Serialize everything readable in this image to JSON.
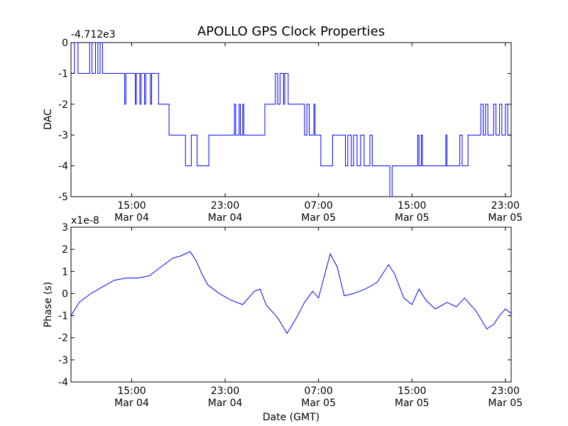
{
  "chart_data": {
    "title": "APOLLO GPS Clock Properties",
    "xlabel": "Date (GMT)",
    "x_ticks": [
      {
        "time": "15:00",
        "date": "Mar 04"
      },
      {
        "time": "23:00",
        "date": "Mar 04"
      },
      {
        "time": "07:00",
        "date": "Mar 05"
      },
      {
        "time": "15:00",
        "date": "Mar 05"
      },
      {
        "time": "23:00",
        "date": "Mar 05"
      }
    ],
    "xlim_hours": [
      -5.2,
      32.5
    ],
    "x_ticks_hours": [
      0,
      8,
      16,
      24,
      32
    ],
    "panels": [
      {
        "type": "line",
        "ylabel": "DAC",
        "offset_label": "-4.712e3",
        "ylim": [
          -5,
          0
        ],
        "yticks": [
          0,
          -1,
          -2,
          -3,
          -4,
          -5
        ],
        "ytick_labels": [
          "0",
          "-1",
          "-2",
          "-3",
          "-4",
          "-5"
        ],
        "series": [
          {
            "color": "#0000ff",
            "points": [
              [
                -5.2,
                -1
              ],
              [
                -4.9,
                0
              ],
              [
                -4.6,
                -1
              ],
              [
                -3.6,
                0
              ],
              [
                -3.4,
                -1
              ],
              [
                -3.1,
                0
              ],
              [
                -2.9,
                -1
              ],
              [
                -2.7,
                0
              ],
              [
                -2.5,
                -1
              ],
              [
                -1.8,
                -1
              ],
              [
                -0.7,
                -1
              ],
              [
                -0.6,
                -2
              ],
              [
                -0.5,
                -1
              ],
              [
                0.2,
                -1
              ],
              [
                0.3,
                -2
              ],
              [
                0.4,
                -1
              ],
              [
                0.7,
                -2
              ],
              [
                0.8,
                -1
              ],
              [
                1.0,
                -1
              ],
              [
                1.1,
                -2
              ],
              [
                1.2,
                -1
              ],
              [
                1.6,
                -2
              ],
              [
                1.7,
                -1
              ],
              [
                2.3,
                -2
              ],
              [
                3.2,
                -3
              ],
              [
                4.6,
                -4
              ],
              [
                5.1,
                -3
              ],
              [
                5.5,
                -3
              ],
              [
                5.6,
                -4
              ],
              [
                6.6,
                -3
              ],
              [
                7.2,
                -3
              ],
              [
                8.7,
                -3
              ],
              [
                8.8,
                -2
              ],
              [
                8.9,
                -3
              ],
              [
                9.2,
                -2
              ],
              [
                9.3,
                -3
              ],
              [
                9.5,
                -2
              ],
              [
                9.6,
                -3
              ],
              [
                11.4,
                -2
              ],
              [
                12.3,
                -1
              ],
              [
                12.5,
                -2
              ],
              [
                12.7,
                -1
              ],
              [
                13.0,
                -2
              ],
              [
                13.1,
                -1
              ],
              [
                13.3,
                -1
              ],
              [
                13.4,
                -2
              ],
              [
                14.8,
                -3
              ],
              [
                15.0,
                -2
              ],
              [
                15.2,
                -3
              ],
              [
                15.6,
                -2
              ],
              [
                15.7,
                -3
              ],
              [
                16.1,
                -3
              ],
              [
                16.2,
                -4
              ],
              [
                17.2,
                -3
              ],
              [
                18.2,
                -3
              ],
              [
                18.3,
                -4
              ],
              [
                18.5,
                -3
              ],
              [
                18.8,
                -4
              ],
              [
                19.0,
                -3
              ],
              [
                19.3,
                -4
              ],
              [
                19.6,
                -3
              ],
              [
                19.9,
                -4
              ],
              [
                20.4,
                -3
              ],
              [
                20.6,
                -4
              ],
              [
                21.0,
                -4
              ],
              [
                22.0,
                -4
              ],
              [
                22.1,
                -5
              ],
              [
                22.3,
                -4
              ],
              [
                24.4,
                -4
              ],
              [
                24.5,
                -3
              ],
              [
                24.6,
                -4
              ],
              [
                24.8,
                -3
              ],
              [
                24.9,
                -4
              ],
              [
                26.9,
                -3
              ],
              [
                27.0,
                -4
              ],
              [
                27.4,
                -4
              ],
              [
                28.0,
                -4
              ],
              [
                28.1,
                -3
              ],
              [
                28.3,
                -4
              ],
              [
                28.8,
                -3
              ],
              [
                29.9,
                -2
              ],
              [
                30.1,
                -3
              ],
              [
                30.3,
                -2
              ],
              [
                30.5,
                -3
              ],
              [
                30.9,
                -3
              ],
              [
                31.0,
                -2
              ],
              [
                31.2,
                -3
              ],
              [
                31.5,
                -2
              ],
              [
                31.7,
                -3
              ],
              [
                32.0,
                -2
              ],
              [
                32.2,
                -3
              ],
              [
                32.5,
                -3
              ]
            ]
          }
        ]
      },
      {
        "type": "line",
        "ylabel": "Phase (s)",
        "offset_label": "x1e-8",
        "ylim": [
          -4,
          3
        ],
        "yticks": [
          3,
          2,
          1,
          0,
          -1,
          -2,
          -3,
          -4
        ],
        "ytick_labels": [
          "3",
          "2",
          "1",
          "0",
          "-1",
          "-2",
          "-3",
          "-4"
        ],
        "series": [
          {
            "color": "#0000ff",
            "points": [
              [
                -5.2,
                -1.0
              ],
              [
                -4.5,
                -0.4
              ],
              [
                -3.5,
                0.0
              ],
              [
                -2.5,
                0.3
              ],
              [
                -1.5,
                0.6
              ],
              [
                -0.5,
                0.7
              ],
              [
                0.5,
                0.7
              ],
              [
                1.5,
                0.8
              ],
              [
                2.5,
                1.2
              ],
              [
                3.5,
                1.6
              ],
              [
                4.2,
                1.7
              ],
              [
                5.0,
                1.9
              ],
              [
                5.5,
                1.5
              ],
              [
                6.0,
                0.9
              ],
              [
                6.5,
                0.4
              ],
              [
                7.5,
                0.0
              ],
              [
                8.5,
                -0.3
              ],
              [
                9.5,
                -0.5
              ],
              [
                10.5,
                0.1
              ],
              [
                11.0,
                0.2
              ],
              [
                11.5,
                -0.5
              ],
              [
                12.5,
                -1.1
              ],
              [
                13.3,
                -1.8
              ],
              [
                14.0,
                -1.2
              ],
              [
                14.8,
                -0.4
              ],
              [
                15.5,
                0.1
              ],
              [
                16.0,
                -0.2
              ],
              [
                16.5,
                0.8
              ],
              [
                17.0,
                1.8
              ],
              [
                17.6,
                1.2
              ],
              [
                18.2,
                -0.1
              ],
              [
                19.0,
                0.0
              ],
              [
                20.0,
                0.2
              ],
              [
                21.0,
                0.5
              ],
              [
                22.0,
                1.3
              ],
              [
                22.5,
                0.9
              ],
              [
                23.3,
                -0.2
              ],
              [
                24.0,
                -0.5
              ],
              [
                24.6,
                0.2
              ],
              [
                25.2,
                -0.3
              ],
              [
                26.0,
                -0.7
              ],
              [
                27.0,
                -0.4
              ],
              [
                27.8,
                -0.6
              ],
              [
                28.5,
                -0.2
              ],
              [
                29.5,
                -0.8
              ],
              [
                30.4,
                -1.6
              ],
              [
                31.0,
                -1.4
              ],
              [
                31.5,
                -1.0
              ],
              [
                32.0,
                -0.7
              ],
              [
                32.5,
                -0.9
              ]
            ]
          }
        ]
      }
    ]
  }
}
